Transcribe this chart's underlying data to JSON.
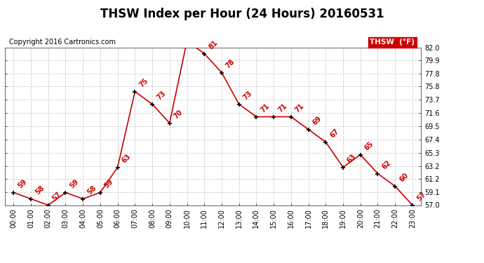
{
  "title": "THSW Index per Hour (24 Hours) 20160531",
  "copyright": "Copyright 2016 Cartronics.com",
  "legend_label": "THSW  (°F)",
  "hours": [
    "00:00",
    "01:00",
    "02:00",
    "03:00",
    "04:00",
    "05:00",
    "06:00",
    "07:00",
    "08:00",
    "09:00",
    "10:00",
    "11:00",
    "12:00",
    "13:00",
    "14:00",
    "15:00",
    "16:00",
    "17:00",
    "18:00",
    "19:00",
    "20:00",
    "21:00",
    "22:00",
    "23:00"
  ],
  "values": [
    59,
    58,
    57,
    59,
    58,
    59,
    63,
    75,
    73,
    70,
    83,
    81,
    78,
    73,
    71,
    71,
    71,
    69,
    67,
    63,
    65,
    62,
    60,
    57
  ],
  "ylim_min": 57.0,
  "ylim_max": 82.0,
  "yticks": [
    57.0,
    59.1,
    61.2,
    63.2,
    65.3,
    67.4,
    69.5,
    71.6,
    73.7,
    75.8,
    77.8,
    79.9,
    82.0
  ],
  "line_color": "#cc0000",
  "marker_color": "#000000",
  "label_color": "#cc0000",
  "grid_color": "#cccccc",
  "bg_color": "#ffffff",
  "legend_bg": "#cc0000",
  "legend_text_color": "#ffffff",
  "title_fontsize": 12,
  "copyright_fontsize": 7,
  "label_fontsize": 7,
  "tick_fontsize": 7,
  "legend_fontsize": 7.5
}
